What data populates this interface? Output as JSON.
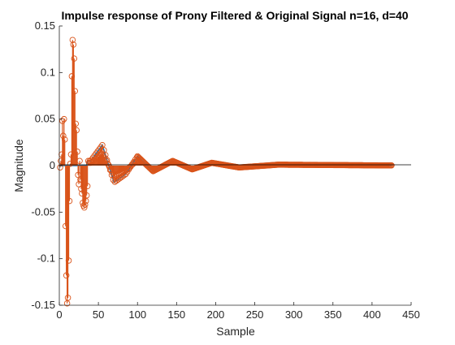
{
  "chart_data": {
    "type": "line",
    "title": "Impulse response of Prony Filtered & Original Signal  n=16, d=40",
    "xlabel": "Sample",
    "ylabel": "Magnitude",
    "xlim": [
      0,
      450
    ],
    "ylim": [
      -0.15,
      0.15
    ],
    "xticks": [
      "0",
      "50",
      "100",
      "150",
      "200",
      "250",
      "300",
      "350",
      "400",
      "450"
    ],
    "yticks": [
      "-0.15",
      "-0.1",
      "-0.05",
      "0",
      "0.05",
      "0.1",
      "0.15"
    ],
    "grid": false,
    "colors": {
      "filtered": "#0072BD",
      "original": "#D95319"
    },
    "series": [
      {
        "style": "line",
        "color": "#0072BD",
        "envelope": [
          [
            40,
            0.005
          ],
          [
            55,
            0.022
          ],
          [
            70,
            -0.018
          ],
          [
            85,
            -0.009
          ],
          [
            100,
            0.01
          ],
          [
            120,
            -0.006
          ],
          [
            145,
            0.005
          ],
          [
            170,
            -0.004
          ],
          [
            195,
            0.003
          ],
          [
            230,
            -0.002
          ],
          [
            280,
            0.001
          ],
          [
            420,
            0.0002
          ]
        ]
      },
      {
        "style": "stem-circle",
        "color": "#D95319",
        "spikes": [
          [
            1,
            -0.002
          ],
          [
            2,
            0.005
          ],
          [
            3,
            0.012
          ],
          [
            4,
            0.048
          ],
          [
            5,
            0.032
          ],
          [
            6,
            0.05
          ],
          [
            7,
            0.028
          ],
          [
            8,
            -0.065
          ],
          [
            9,
            -0.118
          ],
          [
            10,
            -0.148
          ],
          [
            11,
            -0.142
          ],
          [
            12,
            -0.102
          ],
          [
            13,
            -0.038
          ],
          [
            14,
            0.002
          ],
          [
            15,
            0.012
          ],
          [
            16,
            0.096
          ],
          [
            17,
            0.135
          ],
          [
            18,
            0.13
          ],
          [
            19,
            0.115
          ],
          [
            20,
            0.08
          ],
          [
            21,
            0.045
          ],
          [
            22,
            0.038
          ],
          [
            23,
            0.015
          ],
          [
            24,
            -0.01
          ],
          [
            25,
            -0.02
          ],
          [
            26,
            0.005
          ],
          [
            27,
            -0.015
          ],
          [
            28,
            -0.025
          ],
          [
            29,
            -0.03
          ],
          [
            30,
            -0.04
          ],
          [
            31,
            -0.043
          ],
          [
            32,
            -0.045
          ],
          [
            33,
            -0.042
          ],
          [
            34,
            -0.038
          ],
          [
            35,
            -0.032
          ],
          [
            36,
            -0.022
          ]
        ]
      }
    ]
  }
}
